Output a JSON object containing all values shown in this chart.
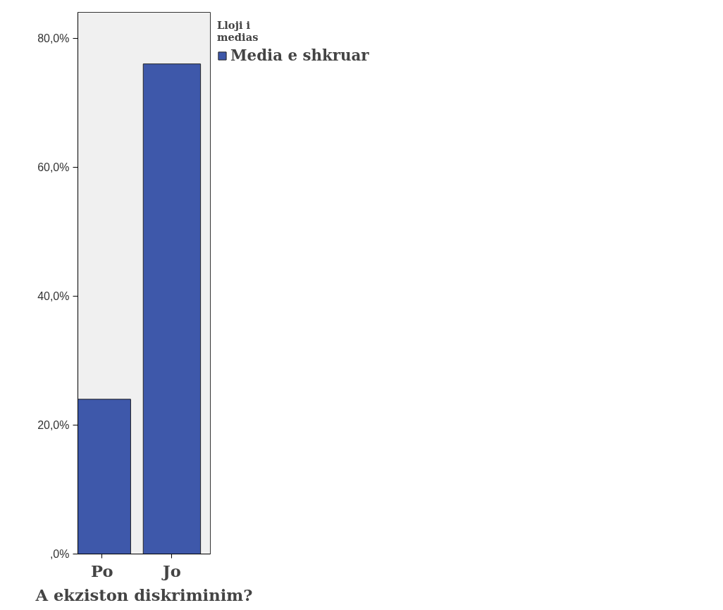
{
  "chart_data": {
    "type": "bar",
    "xlabel": "A ekziston diskriminim?",
    "legend_title": "Lloji i medias",
    "categories": [
      "Po",
      "Jo"
    ],
    "series": [
      {
        "name": "Media e shkruar",
        "color": "#3e58aa",
        "values": [
          24,
          76
        ]
      }
    ],
    "ylim": [
      0,
      84
    ],
    "yticks": [
      {
        "value": 0,
        "label": ",0%"
      },
      {
        "value": 20,
        "label": "20,0%"
      },
      {
        "value": 40,
        "label": "40,0%"
      },
      {
        "value": 60,
        "label": "60,0%"
      },
      {
        "value": 80,
        "label": "80,0%"
      }
    ],
    "grid": false,
    "legend": "right"
  }
}
